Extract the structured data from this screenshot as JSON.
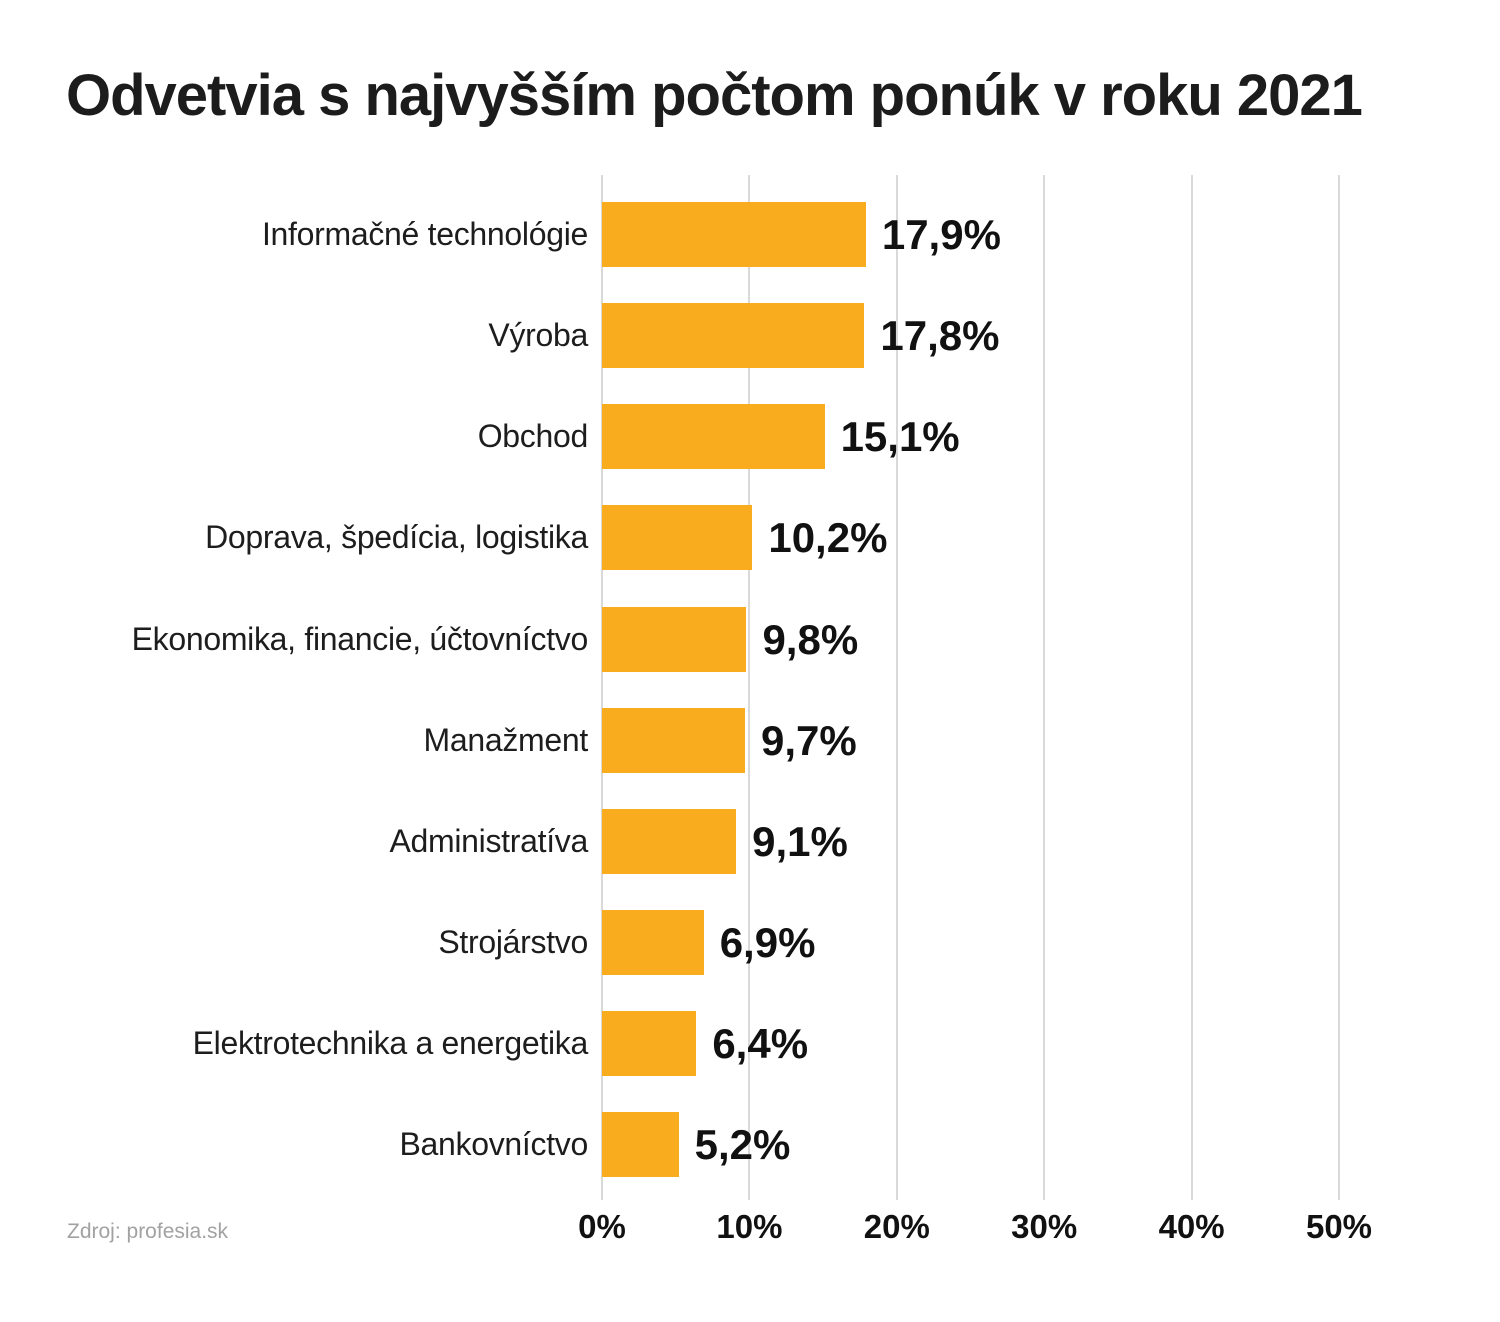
{
  "title": "Odvetvia s najvyšším počtom ponúk v roku 2021",
  "source": "Zdroj: profesia.sk",
  "colors": {
    "bar": "#F8AC1E",
    "title_text": "#1c1c1c",
    "label_text": "#1d1d1d",
    "value_text": "#111111",
    "gridline": "#d9d9d9",
    "source_text": "#a2a2a2",
    "background": "#ffffff"
  },
  "chart_data": {
    "type": "bar",
    "orientation": "horizontal",
    "title": "Odvetvia s najvyšším počtom ponúk v roku 2021",
    "categories": [
      "Informačné technológie",
      "Výroba",
      "Obchod",
      "Doprava, špedícia, logistika",
      "Ekonomika, financie, účtovníctvo",
      "Manažment",
      "Administratíva",
      "Strojárstvo",
      "Elektrotechnika a energetika",
      "Bankovníctvo"
    ],
    "values": [
      17.9,
      17.8,
      15.1,
      10.2,
      9.8,
      9.7,
      9.1,
      6.9,
      6.4,
      5.2
    ],
    "value_labels": [
      "17,9%",
      "17,8%",
      "15,1%",
      "10,2%",
      "9,8%",
      "9,7%",
      "9,1%",
      "6,9%",
      "6,4%",
      "5,2%"
    ],
    "xlabel": "",
    "ylabel": "",
    "x_axis": {
      "ticks": [
        "0%",
        "10%",
        "20%",
        "30%",
        "40%",
        "50%"
      ],
      "tick_values": [
        0,
        10,
        20,
        30,
        40,
        50
      ],
      "min": 0,
      "max": 50
    },
    "grid": true,
    "legend": false,
    "source": "Zdroj: profesia.sk"
  }
}
